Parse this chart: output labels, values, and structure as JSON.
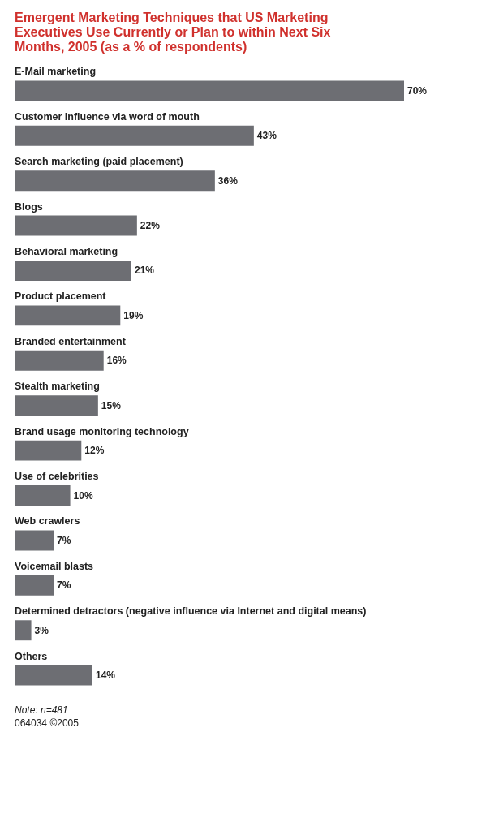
{
  "chart_data": {
    "type": "bar",
    "orientation": "horizontal",
    "title": [
      "Emergent Marketing Techniques that US Marketing",
      "Executives Use Currently or Plan to within Next Six",
      "Months, 2005 (as a % of respondents)"
    ],
    "categories": [
      "E-Mail marketing",
      "Customer influence via word of mouth",
      "Search marketing (paid placement)",
      "Blogs",
      "Behavioral marketing",
      "Product placement",
      "Branded entertainment",
      "Stealth marketing",
      "Brand usage monitoring technology",
      "Use of celebrities",
      "Web crawlers",
      "Voicemail blasts",
      "Determined detractors (negative influence via Internet and digital means)",
      "Others"
    ],
    "values": [
      70,
      43,
      36,
      22,
      21,
      19,
      16,
      15,
      12,
      10,
      7,
      7,
      3,
      14
    ],
    "value_labels": [
      "70%",
      "43%",
      "36%",
      "22%",
      "21%",
      "19%",
      "16%",
      "15%",
      "12%",
      "10%",
      "7%",
      "7%",
      "3%",
      "14%"
    ],
    "color": "#6d6e73",
    "tick_labels": false,
    "annotations": [
      "Note: n=481",
      "064034 ©2005"
    ]
  }
}
